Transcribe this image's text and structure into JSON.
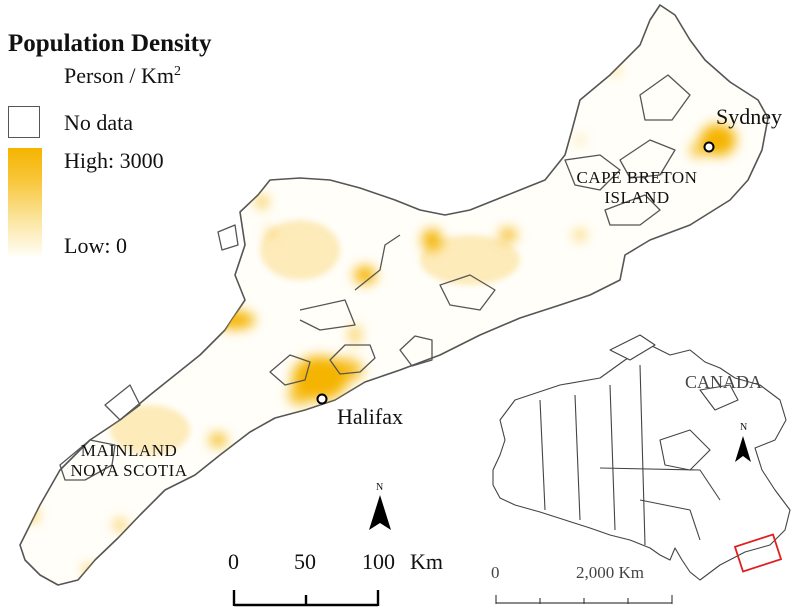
{
  "legend": {
    "title": "Population Density",
    "unit_base": "Person / Km",
    "unit_exp": "2",
    "no_data": "No data",
    "high": "High: 3000",
    "low": "Low: 0",
    "colors": {
      "high": "#f5b400",
      "low": "#fffdf6",
      "no_data": "#ffffff"
    }
  },
  "cities": [
    {
      "name": "Sydney"
    },
    {
      "name": "Halifax"
    }
  ],
  "regions": {
    "cape_breton_line1": "CAPE BRETON",
    "cape_breton_line2": "ISLAND",
    "mainland_line1": "MAINLAND",
    "mainland_line2": "NOVA SCOTIA"
  },
  "inset": {
    "country": "CANADA",
    "scale_start": "0",
    "scale_end": "2,000 Km",
    "north": "N",
    "highlight_color": "#e02020"
  },
  "scale": {
    "tick0": "0",
    "tick1": "50",
    "tick2": "100",
    "unit": "Km",
    "north": "N"
  }
}
